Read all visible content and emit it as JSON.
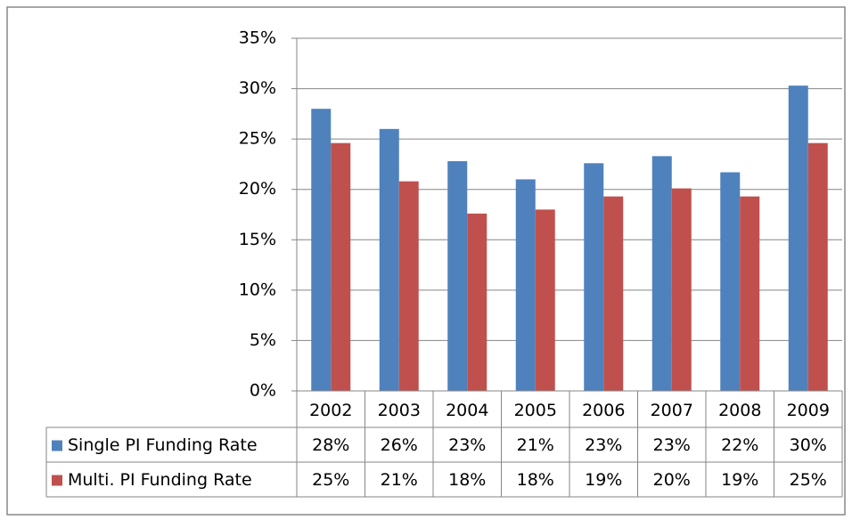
{
  "chart_data": {
    "type": "bar",
    "categories": [
      "2002",
      "2003",
      "2004",
      "2005",
      "2006",
      "2007",
      "2008",
      "2009"
    ],
    "series": [
      {
        "name": "Single PI Funding Rate",
        "color": "#4f81bd",
        "values": [
          28.0,
          26.0,
          22.8,
          21.0,
          22.6,
          23.3,
          21.7,
          30.3
        ],
        "value_labels": [
          "28%",
          "26%",
          "23%",
          "21%",
          "23%",
          "23%",
          "22%",
          "30%"
        ]
      },
      {
        "name": "Multi. PI Funding Rate",
        "color": "#c0504d",
        "values": [
          24.6,
          20.8,
          17.6,
          18.0,
          19.3,
          20.1,
          19.3,
          24.6
        ],
        "value_labels": [
          "25%",
          "21%",
          "18%",
          "18%",
          "19%",
          "20%",
          "19%",
          "25%"
        ]
      }
    ],
    "ylim": [
      0,
      35
    ],
    "yticks": [
      {
        "value": 0,
        "label": "0%"
      },
      {
        "value": 5,
        "label": "5%"
      },
      {
        "value": 10,
        "label": "10%"
      },
      {
        "value": 15,
        "label": "15%"
      },
      {
        "value": 20,
        "label": "20%"
      },
      {
        "value": 25,
        "label": "25%"
      },
      {
        "value": 30,
        "label": "30%"
      },
      {
        "value": 35,
        "label": "35%"
      }
    ],
    "grid": true
  }
}
